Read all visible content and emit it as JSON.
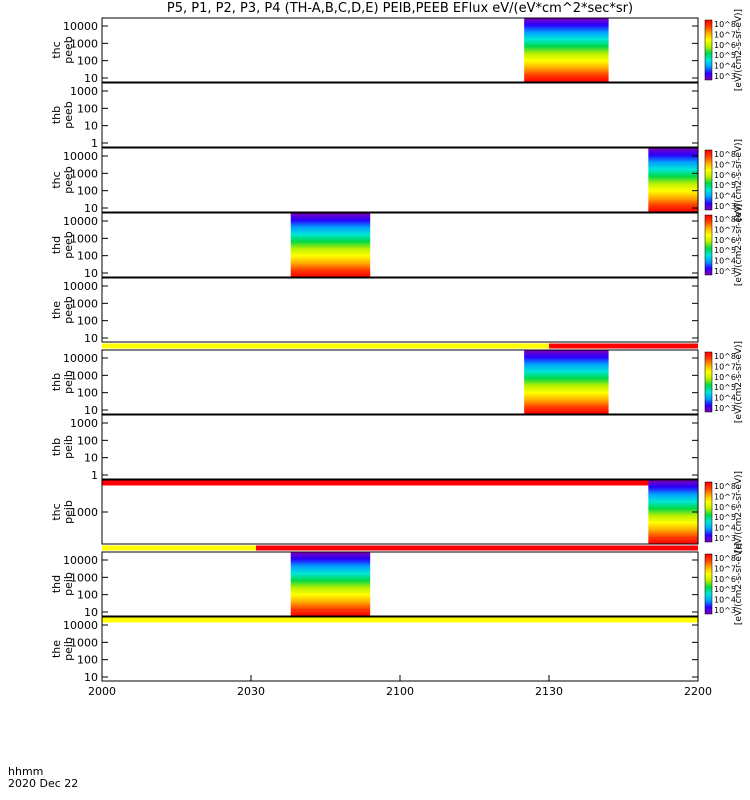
{
  "title": "P5, P1, P2, P3, P4 (TH-A,B,C,D,E) PEIB,PEEB EFlux eV/(eV*cm^2*sec*sr)",
  "time_label": "hhmm",
  "date_label": "2020 Dec 22",
  "chart_data": {
    "type": "heatmap",
    "xlabel": "hhmm",
    "x_ticks": [
      "2000",
      "2030",
      "2100",
      "2130",
      "2200"
    ],
    "x_range_minutes": [
      0,
      120
    ],
    "colorbar_ticks": [
      "10^8",
      "10^7",
      "10^6",
      "10^5",
      "10^4",
      "10^3"
    ],
    "colorbar_label": "[eV/(cm2-s-sr-eV)]",
    "colormap": [
      "#7f00b5",
      "#2a00ff",
      "#00a0ff",
      "#00e6d8",
      "#00d84a",
      "#b8f000",
      "#ffff00",
      "#ffb000",
      "#ff4000",
      "#ff0000"
    ],
    "panels": [
      {
        "name": "thc peeb",
        "label1": "thc",
        "label2": "peeb",
        "yticks": [
          "10000",
          "1000",
          "100",
          "10"
        ],
        "data_blocks": [
          {
            "start_min": 85,
            "end_min": 102
          }
        ],
        "colorbar": true,
        "band_after": null
      },
      {
        "name": "thb peeb",
        "label1": "thb",
        "label2": "peeb",
        "yticks": [
          "1000",
          "100",
          "10",
          "1"
        ],
        "data_blocks": [],
        "colorbar": false,
        "band_after": null
      },
      {
        "name": "thc peeb",
        "label1": "thc",
        "label2": "peeb",
        "yticks": [
          "10000",
          "1000",
          "100",
          "10"
        ],
        "data_blocks": [
          {
            "start_min": 110,
            "end_min": 120
          }
        ],
        "colorbar": true,
        "band_after": null
      },
      {
        "name": "thd peeb",
        "label1": "thd",
        "label2": "peeb",
        "yticks": [
          "10000",
          "1000",
          "100",
          "10"
        ],
        "data_blocks": [
          {
            "start_min": 38,
            "end_min": 54
          }
        ],
        "colorbar": true,
        "band_after": null
      },
      {
        "name": "the peeb",
        "label1": "the",
        "label2": "peeb",
        "yticks": [
          "10000",
          "1000",
          "100",
          "10"
        ],
        "data_blocks": [],
        "colorbar": false,
        "band_after": {
          "yellow_until_min": 90,
          "red_from_min": 90
        }
      },
      {
        "name": "thb peib",
        "label1": "thb",
        "label2": "peib",
        "yticks": [
          "10000",
          "1000",
          "100",
          "10"
        ],
        "data_blocks": [
          {
            "start_min": 85,
            "end_min": 102
          }
        ],
        "colorbar": true,
        "band_after": null
      },
      {
        "name": "thb peib",
        "label1": "thb",
        "label2": "peib",
        "yticks": [
          "1000",
          "100",
          "10",
          "1"
        ],
        "data_blocks": [],
        "colorbar": false,
        "band_after": {
          "yellow_until_min": 0,
          "red_from_min": 0
        }
      },
      {
        "name": "thc peib",
        "label1": "thc",
        "label2": "peib",
        "yticks": [
          "1000"
        ],
        "data_blocks": [
          {
            "start_min": 110,
            "end_min": 120
          }
        ],
        "colorbar": true,
        "band_after": {
          "yellow_until_min": 31,
          "red_from_min": 31
        }
      },
      {
        "name": "thd peib",
        "label1": "thd",
        "label2": "peib",
        "yticks": [
          "10000",
          "1000",
          "100",
          "10"
        ],
        "data_blocks": [
          {
            "start_min": 38,
            "end_min": 54
          }
        ],
        "colorbar": true,
        "band_after": {
          "yellow_until_min": 120,
          "red_from_min": 120
        }
      },
      {
        "name": "the peib",
        "label1": "the",
        "label2": "peib",
        "yticks": [
          "10000",
          "1000",
          "100",
          "10"
        ],
        "data_blocks": [],
        "colorbar": false,
        "band_after": null
      }
    ]
  }
}
